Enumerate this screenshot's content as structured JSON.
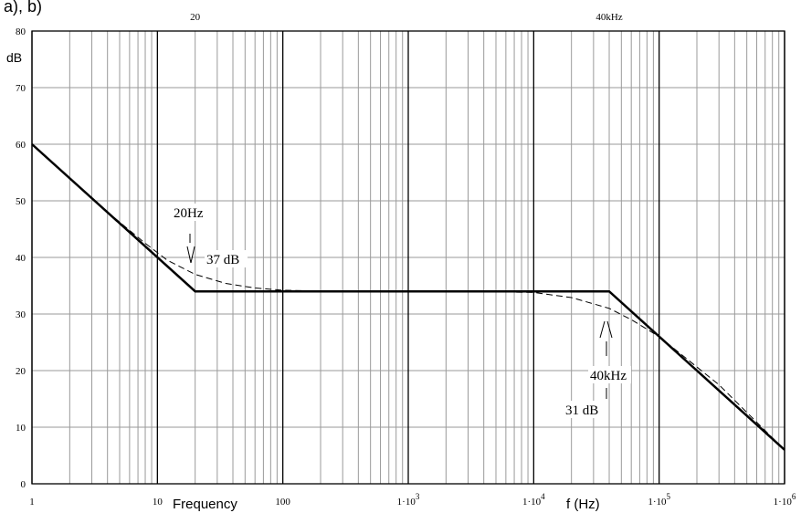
{
  "panel_label": "a), b)",
  "chart_data": {
    "type": "line",
    "x_scale": "log",
    "xlim": [
      1,
      1000000
    ],
    "ylim": [
      0,
      80
    ],
    "y_ticks": [
      0,
      10,
      20,
      30,
      40,
      50,
      60,
      70,
      80
    ],
    "ylabel": "dB",
    "xlabel_left": "Frequency",
    "xlabel_right": "f (Hz)",
    "x_tick_labels": [
      {
        "x": 1,
        "base": "1"
      },
      {
        "x": 10,
        "base": "10"
      },
      {
        "x": 100,
        "base": "100"
      },
      {
        "x": 1000,
        "base": "1·10",
        "exp": "3"
      },
      {
        "x": 10000,
        "base": "1·10",
        "exp": "4"
      },
      {
        "x": 100000,
        "base": "1·10",
        "exp": "5"
      },
      {
        "x": 1000000,
        "base": "1·10",
        "exp": "6"
      }
    ],
    "top_markers": [
      {
        "x": 20,
        "label": "20"
      },
      {
        "x": 40000,
        "label": "40kHz"
      }
    ],
    "grid": true,
    "series": [
      {
        "style": "solid-bold",
        "color": "#000000",
        "x": [
          1,
          20,
          40000,
          1000000
        ],
        "y": [
          60,
          34,
          34,
          6
        ]
      },
      {
        "style": "dashed",
        "color": "#000000",
        "x": [
          1,
          4,
          8,
          12,
          20,
          35,
          60,
          100,
          300,
          1000,
          3000,
          10000,
          20000,
          40000,
          60000,
          100000,
          300000,
          1000000
        ],
        "y": [
          60,
          48,
          42.5,
          39.5,
          37,
          35.4,
          34.6,
          34.2,
          34,
          34,
          34,
          33.8,
          32.9,
          31,
          29,
          26,
          17.5,
          6
        ]
      }
    ],
    "annotations": [
      {
        "text": "20Hz"
      },
      {
        "text": "37 dB"
      },
      {
        "text": "40kHz"
      },
      {
        "text": "31 dB"
      }
    ]
  }
}
